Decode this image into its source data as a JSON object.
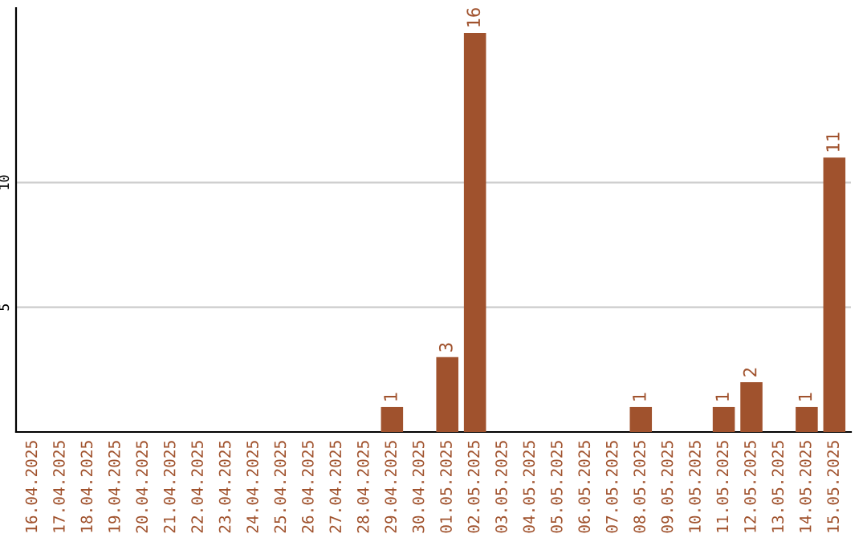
{
  "chart_data": {
    "type": "bar",
    "categories": [
      "16.04.2025",
      "17.04.2025",
      "18.04.2025",
      "19.04.2025",
      "20.04.2025",
      "21.04.2025",
      "22.04.2025",
      "23.04.2025",
      "24.04.2025",
      "25.04.2025",
      "26.04.2025",
      "27.04.2025",
      "28.04.2025",
      "29.04.2025",
      "30.04.2025",
      "01.05.2025",
      "02.05.2025",
      "03.05.2025",
      "04.05.2025",
      "05.05.2025",
      "06.05.2025",
      "07.05.2025",
      "08.05.2025",
      "09.05.2025",
      "10.05.2025",
      "11.05.2025",
      "12.05.2025",
      "13.05.2025",
      "14.05.2025",
      "15.05.2025"
    ],
    "values": [
      0,
      0,
      0,
      0,
      0,
      0,
      0,
      0,
      0,
      0,
      0,
      0,
      0,
      1,
      0,
      3,
      16,
      0,
      0,
      0,
      0,
      0,
      1,
      0,
      0,
      1,
      2,
      0,
      1,
      11
    ],
    "value_labels": [
      null,
      null,
      null,
      null,
      null,
      null,
      null,
      null,
      null,
      null,
      null,
      null,
      null,
      "1",
      null,
      "3",
      "16",
      null,
      null,
      null,
      null,
      null,
      "1",
      null,
      null,
      "1",
      "2",
      null,
      "1",
      "11"
    ],
    "color": "#a0522d",
    "ylim": [
      0,
      17
    ],
    "yticks": [
      5,
      10
    ],
    "grid": "y"
  }
}
